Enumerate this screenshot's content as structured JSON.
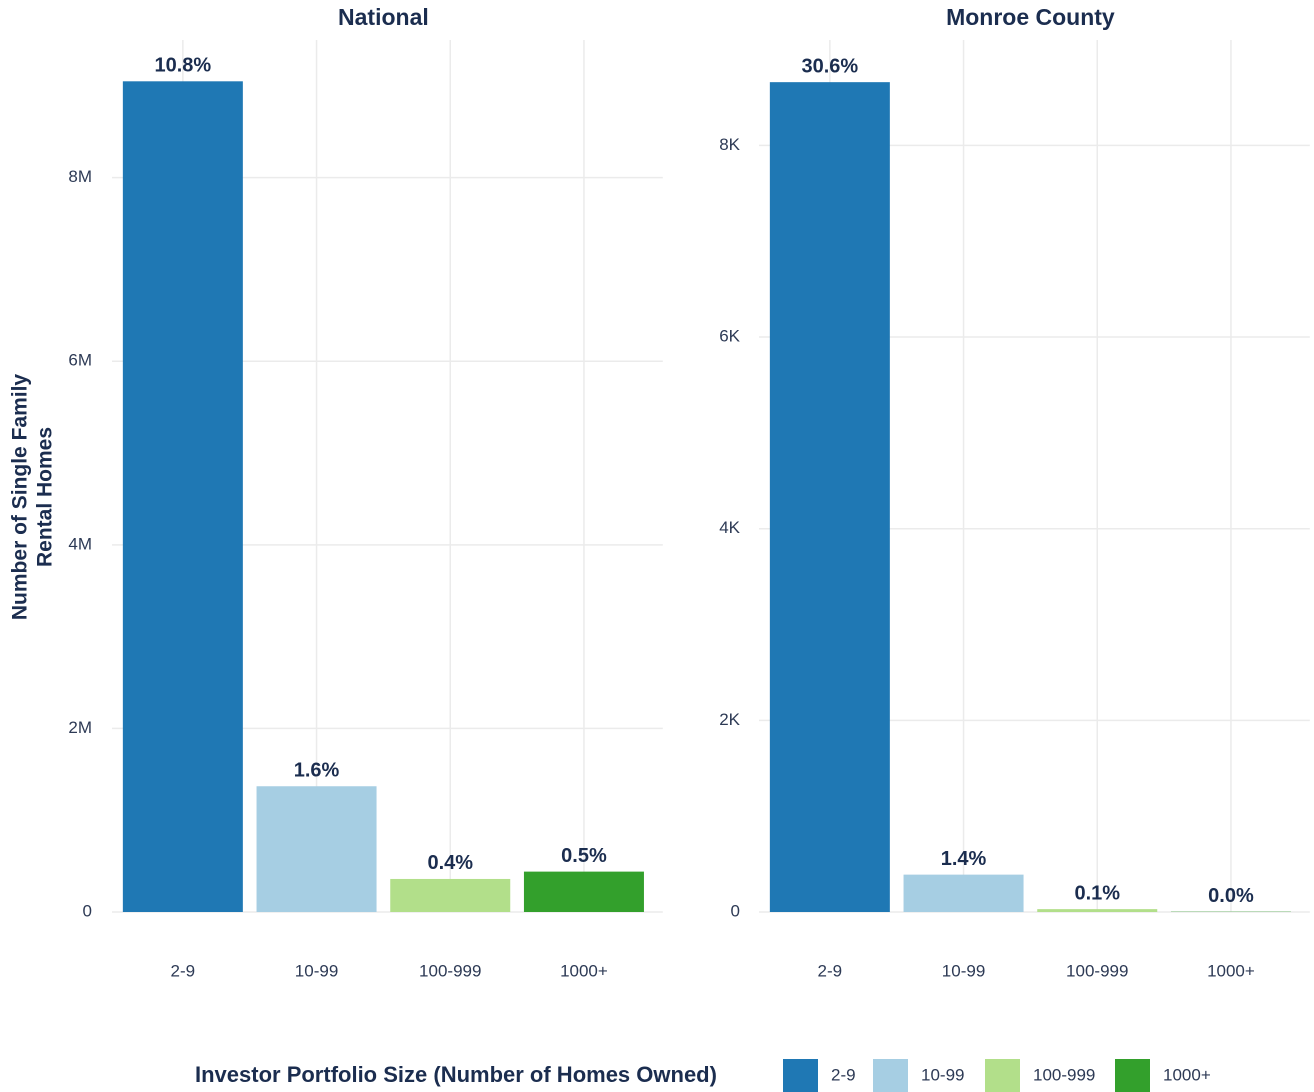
{
  "chart_data": [
    {
      "type": "bar",
      "title": "National",
      "ylabel": [
        "Number of Single Family",
        "Rental Homes"
      ],
      "categories": [
        "2-9",
        "10-99",
        "100-999",
        "1000+"
      ],
      "values": [
        9050000,
        1370000,
        360000,
        440000
      ],
      "bar_labels": [
        "10.8%",
        "1.6%",
        "0.4%",
        "0.5%"
      ],
      "colors": [
        "#1f78b4",
        "#a6cee3",
        "#b2df8a",
        "#33a02c"
      ],
      "ylim": [
        0,
        9500000
      ],
      "yticks": [
        0,
        {
          "value": 2000000,
          "label": "2M"
        },
        {
          "value": 4000000,
          "label": "4M"
        },
        {
          "value": 6000000,
          "label": "6M"
        },
        {
          "value": 8000000,
          "label": "8M"
        }
      ],
      "grid": true
    },
    {
      "type": "bar",
      "title": "Monroe County",
      "categories": [
        "2-9",
        "10-99",
        "100-999",
        "1000+"
      ],
      "values": [
        8660,
        390,
        30,
        3
      ],
      "bar_labels": [
        "30.6%",
        "1.4%",
        "0.1%",
        "0.0%"
      ],
      "colors": [
        "#1f78b4",
        "#a6cee3",
        "#b2df8a",
        "#33a02c"
      ],
      "ylim": [
        0,
        9100
      ],
      "yticks": [
        0,
        {
          "value": 2000,
          "label": "2K"
        },
        {
          "value": 4000,
          "label": "4K"
        },
        {
          "value": 6000,
          "label": "6K"
        },
        {
          "value": 8000,
          "label": "8K"
        }
      ],
      "grid": true
    }
  ],
  "legend": {
    "title": "Investor Portfolio Size (Number of Homes Owned)",
    "items": [
      {
        "label": "2-9",
        "color": "#1f78b4"
      },
      {
        "label": "10-99",
        "color": "#a6cee3"
      },
      {
        "label": "100-999",
        "color": "#b2df8a"
      },
      {
        "label": "1000+",
        "color": "#33a02c"
      }
    ]
  }
}
